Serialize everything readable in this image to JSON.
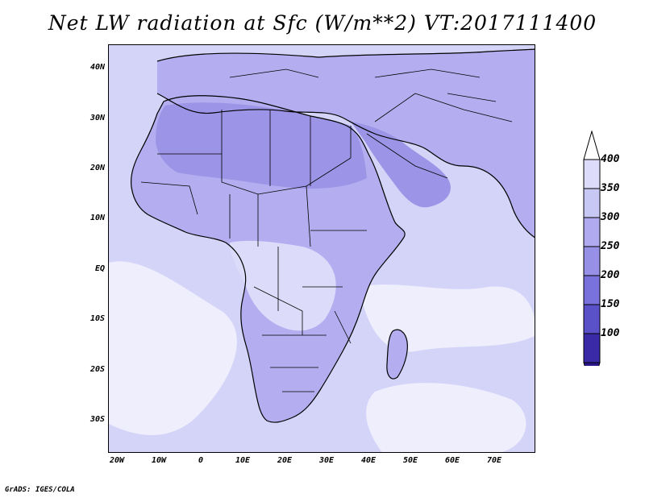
{
  "title": "Net LW radiation at Sfc (W/m**2) VT:2017111400",
  "credit": "GrADS: IGES/COLA",
  "lat_ticks": [
    "40N",
    "30N",
    "20N",
    "10N",
    "EQ",
    "10S",
    "20S",
    "30S"
  ],
  "lon_ticks": [
    "20W",
    "10W",
    "0",
    "10E",
    "20E",
    "30E",
    "40E",
    "50E",
    "60E",
    "70E"
  ],
  "colorbar": {
    "labels": [
      "400",
      "350",
      "300",
      "250",
      "200",
      "150",
      "100"
    ],
    "colors": [
      "#ffffff",
      "#dcdcfa",
      "#c8c8f5",
      "#b0aaf0",
      "#9690e6",
      "#7a72dc",
      "#5a50c8",
      "#3a2aa8",
      "#2a1688"
    ]
  },
  "map_colors": {
    "ocean": "#d4d4f8",
    "land": "#b4aef0",
    "desert": "#9c94e6",
    "humid": "#dcdcfa",
    "cloud": "#eeeefd",
    "coast": "#000000"
  }
}
